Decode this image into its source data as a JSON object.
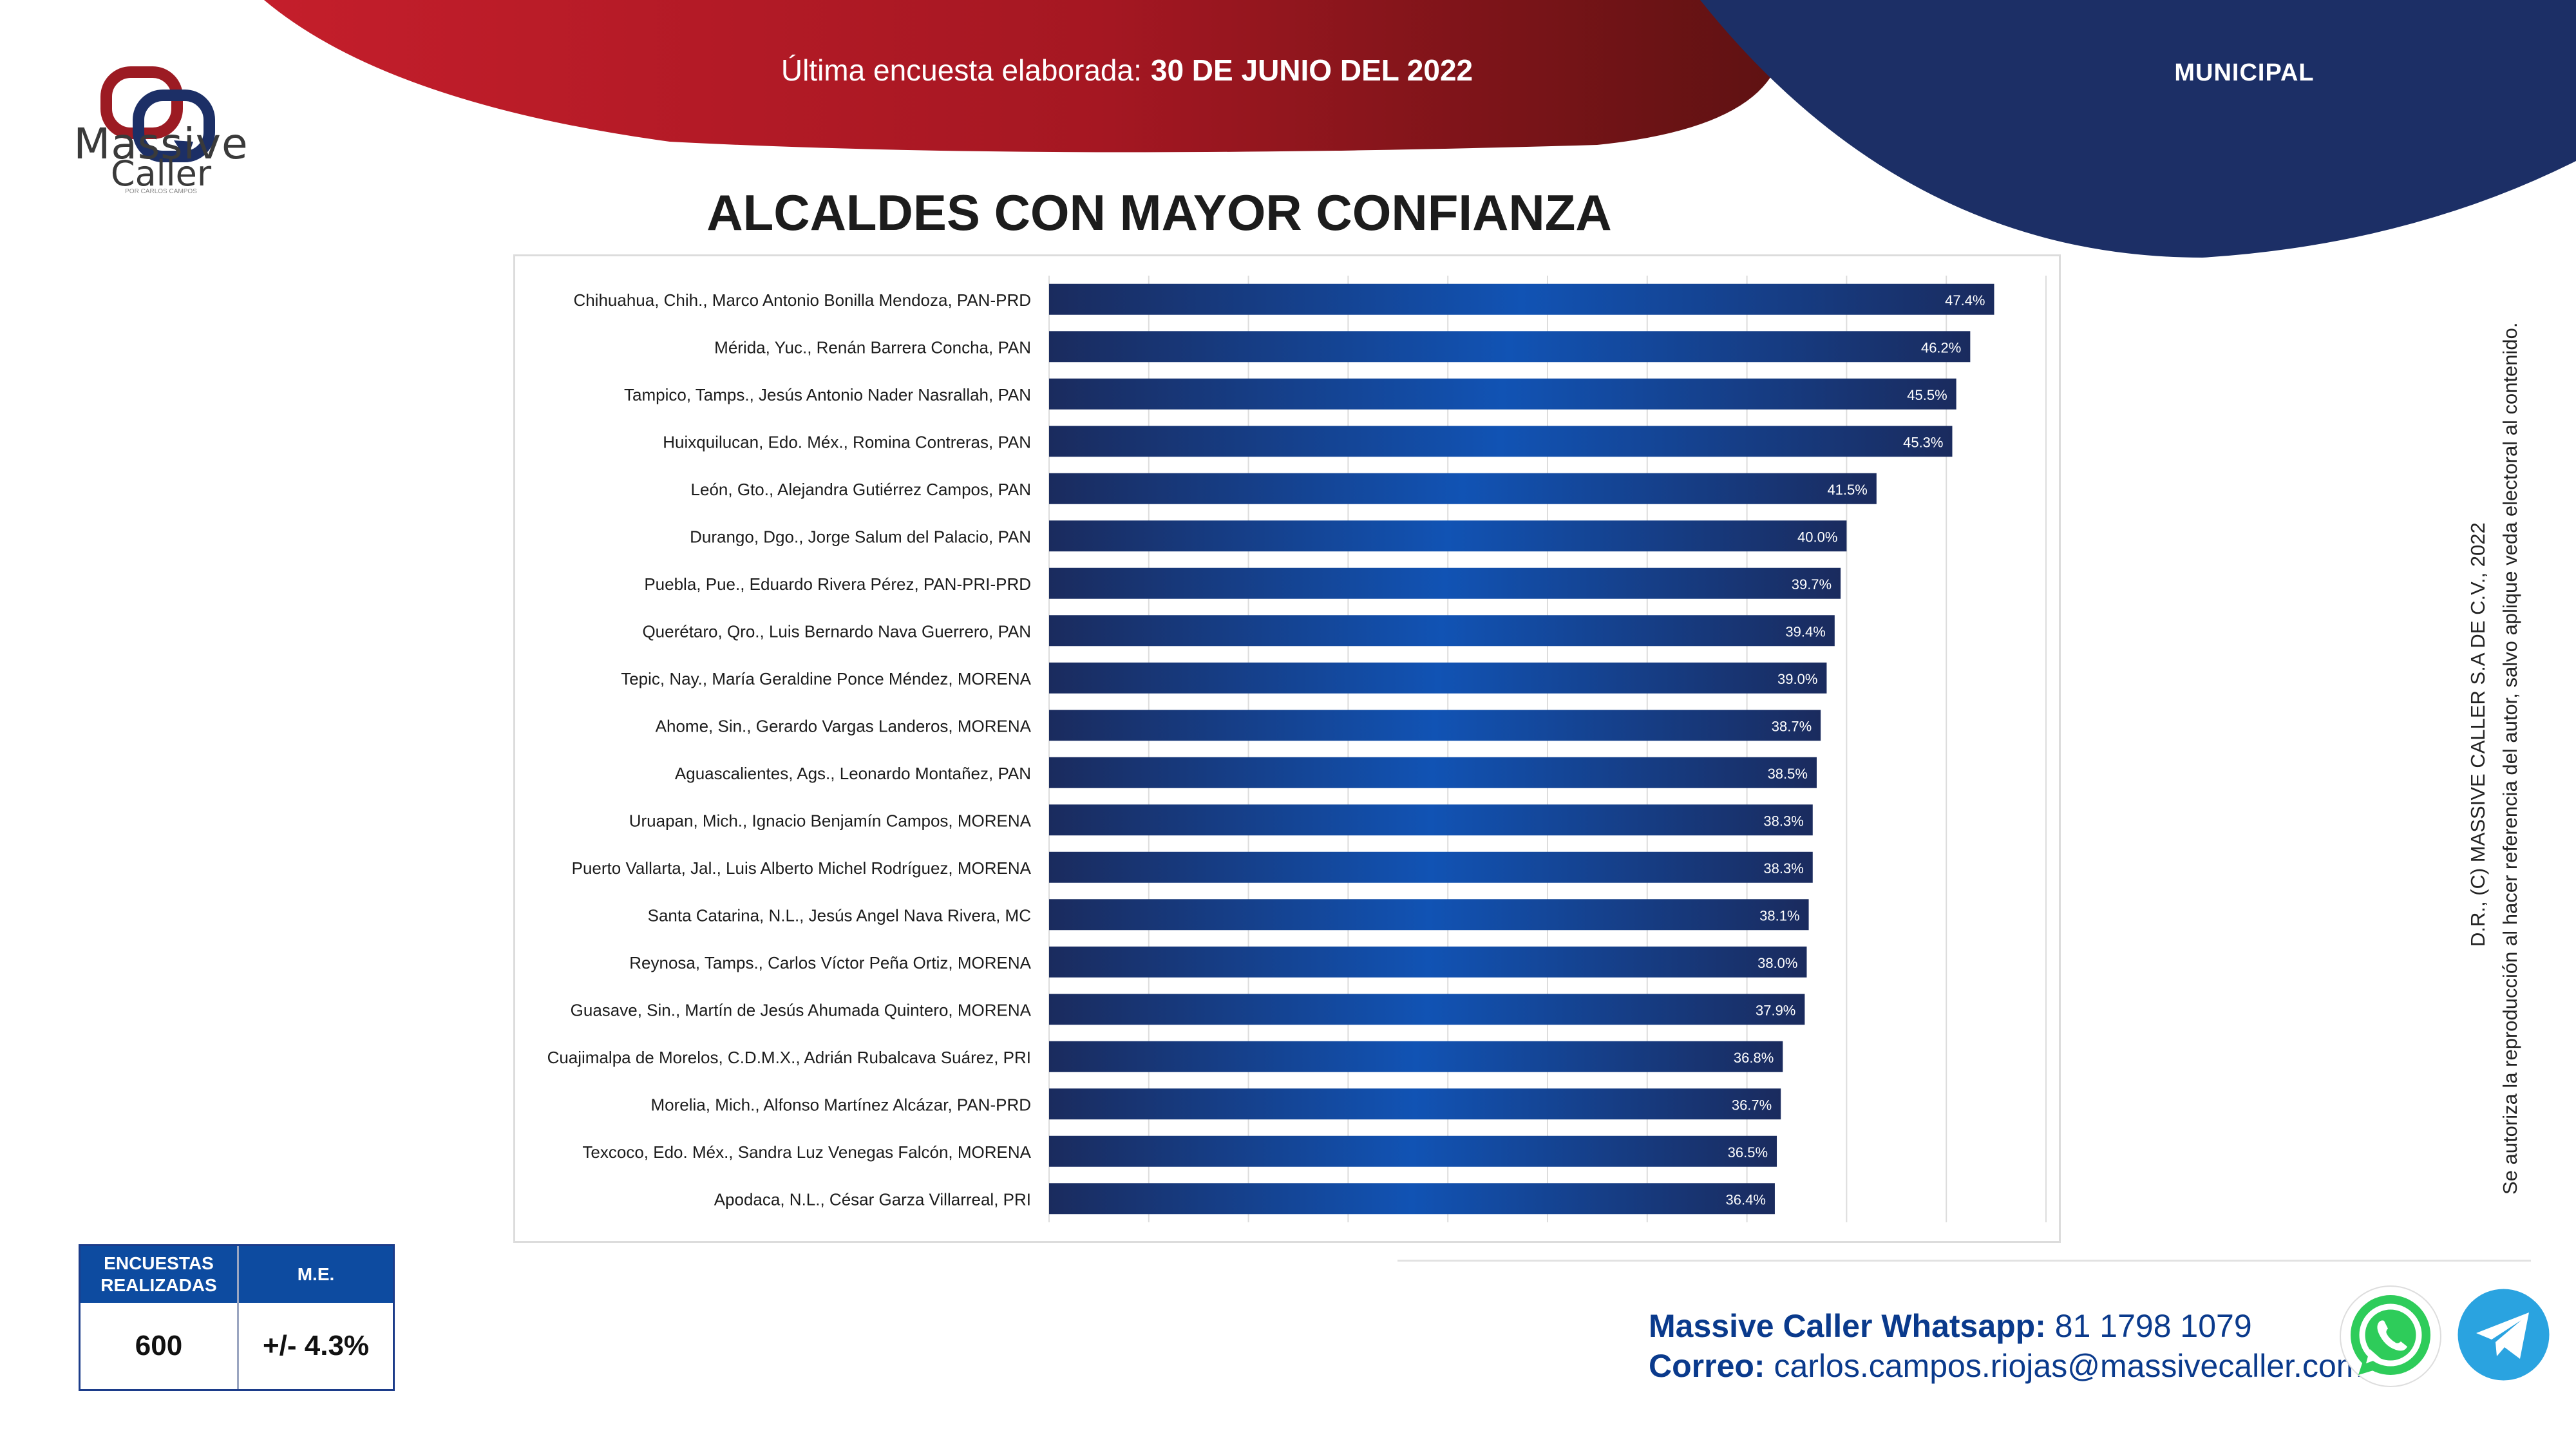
{
  "brand": {
    "logo_word1": "Massive",
    "logo_word2": "Caller",
    "logo_tagline": "POR CARLOS CAMPOS"
  },
  "header": {
    "survey_label": "Última encuesta elaborada:",
    "survey_date": "30 DE JUNIO DEL 2022",
    "scope": "MUNICIPAL"
  },
  "page_title": "ALCALDES CON MAYOR CONFIANZA",
  "colors": {
    "red": "#b81d2a",
    "navy": "#1c2f66",
    "bar_dark": "#1a2b5e",
    "bar_light": "#1153b4",
    "accent_blue": "#0a3a8c"
  },
  "chart_data": {
    "type": "bar",
    "orientation": "horizontal",
    "title": "",
    "xlabel": "",
    "ylabel": "",
    "xlim": [
      0,
      50
    ],
    "grid": true,
    "categories": [
      "Chihuahua, Chih., Marco Antonio Bonilla Mendoza, PAN-PRD",
      "Mérida, Yuc., Renán Barrera Concha, PAN",
      "Tampico, Tamps., Jesús Antonio Nader Nasrallah, PAN",
      "Huixquilucan, Edo. Méx., Romina Contreras, PAN",
      "León, Gto., Alejandra Gutiérrez Campos, PAN",
      "Durango, Dgo., Jorge Salum del Palacio, PAN",
      "Puebla, Pue., Eduardo Rivera Pérez, PAN-PRI-PRD",
      "Querétaro, Qro., Luis Bernardo Nava Guerrero, PAN",
      "Tepic, Nay., María Geraldine Ponce Méndez, MORENA",
      "Ahome, Sin., Gerardo Vargas Landeros, MORENA",
      "Aguascalientes, Ags., Leonardo Montañez, PAN",
      "Uruapan, Mich., Ignacio Benjamín Campos, MORENA",
      "Puerto Vallarta, Jal., Luis Alberto Michel Rodríguez, MORENA",
      "Santa Catarina, N.L., Jesús Angel Nava Rivera, MC",
      "Reynosa, Tamps., Carlos Víctor Peña Ortiz, MORENA",
      "Guasave, Sin., Martín de Jesús Ahumada Quintero, MORENA",
      "Cuajimalpa de Morelos, C.D.M.X., Adrián Rubalcava Suárez, PRI",
      "Morelia, Mich., Alfonso Martínez Alcázar, PAN-PRD",
      "Texcoco, Edo. Méx., Sandra Luz Venegas Falcón, MORENA",
      "Apodaca, N.L., César Garza Villarreal, PRI"
    ],
    "values": [
      47.4,
      46.2,
      45.5,
      45.3,
      41.5,
      40.0,
      39.7,
      39.4,
      39.0,
      38.7,
      38.5,
      38.3,
      38.3,
      38.1,
      38.0,
      37.9,
      36.8,
      36.7,
      36.5,
      36.4
    ],
    "value_labels": [
      "47.4%",
      "46.2%",
      "45.5%",
      "45.3%",
      "41.5%",
      "40.0%",
      "39.7%",
      "39.4%",
      "39.0%",
      "38.7%",
      "38.5%",
      "38.3%",
      "38.3%",
      "38.1%",
      "38.0%",
      "37.9%",
      "36.8%",
      "36.7%",
      "36.5%",
      "36.4%"
    ]
  },
  "stats": {
    "surveys_header_line1": "ENCUESTAS",
    "surveys_header_line2": "REALIZADAS",
    "surveys_value": "600",
    "me_header": "M.E.",
    "me_value": "+/- 4.3%"
  },
  "contact": {
    "whatsapp_label": "Massive Caller Whatsapp:",
    "whatsapp_number": "81 1798 1079",
    "email_label": "Correo:",
    "email": "carlos.campos.riojas@massivecaller.com"
  },
  "copyright": {
    "line1": "D.R., (C) MASSIVE CALLER S.A DE C.V., 2022",
    "line2": "Se autoriza la reproducción al hacer referencia del autor, salvo aplique veda electoral al contenido."
  },
  "icons": {
    "logo": "massive-caller-logo-icon",
    "whatsapp": "whatsapp-icon",
    "telegram": "telegram-icon"
  }
}
